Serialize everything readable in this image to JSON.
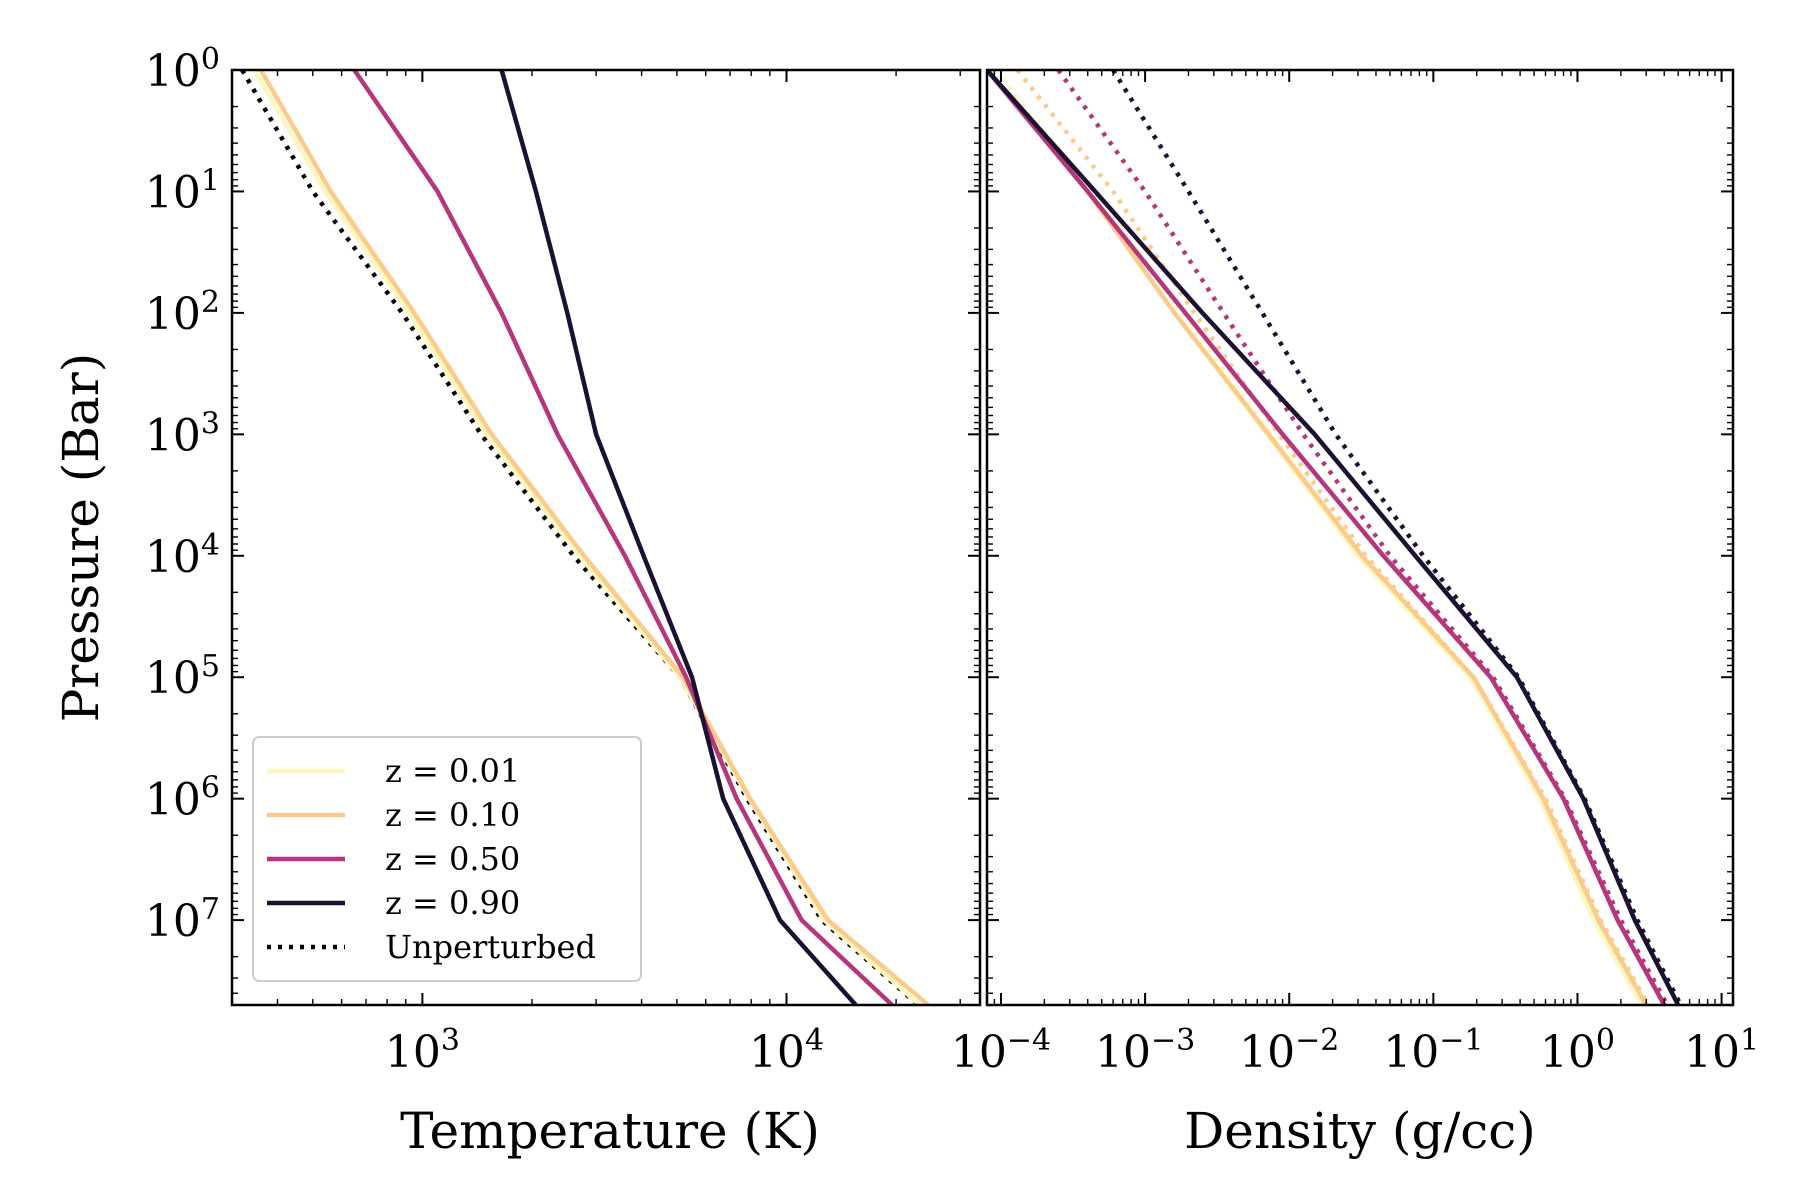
{
  "chart_data": [
    {
      "type": "line",
      "xscale": "log",
      "yscale": "log",
      "xlabel": "Temperature (K)",
      "ylabel": "Pressure (Bar)",
      "xlim": [
        300,
        34000
      ],
      "ylim": [
        1,
        50000000
      ],
      "y_inverted": true,
      "xticks": [
        {
          "base": "10",
          "exp": "3",
          "value": 1000
        },
        {
          "base": "10",
          "exp": "4",
          "value": 10000
        }
      ],
      "yticks": [
        {
          "base": "10",
          "exp": "0",
          "value": 1
        },
        {
          "base": "10",
          "exp": "1",
          "value": 10
        },
        {
          "base": "10",
          "exp": "2",
          "value": 100
        },
        {
          "base": "10",
          "exp": "3",
          "value": 1000
        },
        {
          "base": "10",
          "exp": "4",
          "value": 10000
        },
        {
          "base": "10",
          "exp": "5",
          "value": 100000
        },
        {
          "base": "10",
          "exp": "6",
          "value": 1000000
        },
        {
          "base": "10",
          "exp": "7",
          "value": 10000000
        }
      ],
      "legend_position": "lower-left",
      "series": [
        {
          "name": "Unperturbed",
          "color": "#000000",
          "style": "dotted",
          "points": [
            [
              320,
              1
            ],
            [
              500,
              10
            ],
            [
              880,
              100
            ],
            [
              1450,
              1000
            ],
            [
              2600,
              10000
            ],
            [
              5100,
              100000
            ],
            [
              7800,
              1000000
            ],
            [
              12500,
              10000000
            ],
            [
              23000,
              50000000
            ]
          ]
        },
        {
          "name": "z = 0.01",
          "color": "#fcf6bf",
          "style": "solid",
          "points": [
            [
              345,
              1
            ],
            [
              540,
              10
            ],
            [
              920,
              100
            ],
            [
              1500,
              1000
            ],
            [
              2700,
              10000
            ],
            [
              5100,
              100000
            ],
            [
              7900,
              1000000
            ],
            [
              12700,
              10000000
            ],
            [
              23200,
              50000000
            ]
          ]
        },
        {
          "name": "z = 0.10",
          "color": "#fbcb8c",
          "style": "solid",
          "points": [
            [
              360,
              1
            ],
            [
              560,
              10
            ],
            [
              950,
              100
            ],
            [
              1550,
              1000
            ],
            [
              2780,
              10000
            ],
            [
              5200,
              100000
            ],
            [
              7950,
              1000000
            ],
            [
              13000,
              10000000
            ],
            [
              24500,
              50000000
            ]
          ]
        },
        {
          "name": "z = 0.50",
          "color": "#b5367a",
          "style": "solid",
          "points": [
            [
              650,
              1
            ],
            [
              1100,
              10
            ],
            [
              1650,
              100
            ],
            [
              2350,
              1000
            ],
            [
              3600,
              10000
            ],
            [
              5300,
              100000
            ],
            [
              7300,
              1000000
            ],
            [
              11000,
              10000000
            ],
            [
              19500,
              50000000
            ]
          ]
        },
        {
          "name": "z = 0.90",
          "color": "#1c1033",
          "style": "solid",
          "points": [
            [
              1650,
              1
            ],
            [
              2050,
              10
            ],
            [
              2500,
              100
            ],
            [
              3000,
              1000
            ],
            [
              4050,
              10000
            ],
            [
              5500,
              100000
            ],
            [
              6700,
              1000000
            ],
            [
              9600,
              10000000
            ],
            [
              15500,
              50000000
            ]
          ]
        }
      ],
      "legend": [
        {
          "label": "z = 0.01",
          "color": "#fcf6bf",
          "style": "solid"
        },
        {
          "label": "z = 0.10",
          "color": "#fbcb8c",
          "style": "solid"
        },
        {
          "label": "z = 0.50",
          "color": "#b5367a",
          "style": "solid"
        },
        {
          "label": "z = 0.90",
          "color": "#1c1033",
          "style": "solid"
        },
        {
          "label": "Unperturbed",
          "color": "#000000",
          "style": "dotted"
        }
      ]
    },
    {
      "type": "line",
      "xscale": "log",
      "yscale": "log",
      "xlabel": "Density (g/cc)",
      "ylabel": "",
      "xlim": [
        8e-05,
        12
      ],
      "ylim": [
        1,
        50000000
      ],
      "y_inverted": true,
      "xticks": [
        {
          "base": "10",
          "exp": "−4",
          "value": 0.0001
        },
        {
          "base": "10",
          "exp": "−3",
          "value": 0.001
        },
        {
          "base": "10",
          "exp": "−2",
          "value": 0.01
        },
        {
          "base": "10",
          "exp": "−1",
          "value": 0.1
        },
        {
          "base": "10",
          "exp": "0",
          "value": 1
        },
        {
          "base": "10",
          "exp": "1",
          "value": 10
        }
      ],
      "series": [
        {
          "name": "z = 0.01",
          "color": "#fcf6bf",
          "style": "solid",
          "points": [
            [
              8e-05,
              1
            ],
            [
              0.0004,
              10
            ],
            [
              0.0016,
              100
            ],
            [
              0.007,
              1000
            ],
            [
              0.03,
              10000
            ],
            [
              0.18,
              100000
            ],
            [
              0.55,
              1000000
            ],
            [
              1.3,
              10000000
            ],
            [
              2.8,
              50000000
            ]
          ]
        },
        {
          "name": "z = 0.01 (unperturbed)",
          "color": "#fcf6bf",
          "style": "dotted",
          "points": [
            [
              9e-05,
              1
            ],
            [
              0.00045,
              10
            ],
            [
              0.0018,
              100
            ],
            [
              0.0075,
              1000
            ],
            [
              0.031,
              10000
            ],
            [
              0.18,
              100000
            ],
            [
              0.56,
              1000000
            ],
            [
              1.35,
              10000000
            ],
            [
              2.9,
              50000000
            ]
          ]
        },
        {
          "name": "z = 0.10",
          "color": "#fbcb8c",
          "style": "solid",
          "points": [
            [
              8e-05,
              1
            ],
            [
              0.0004,
              10
            ],
            [
              0.0016,
              100
            ],
            [
              0.0072,
              1000
            ],
            [
              0.032,
              10000
            ],
            [
              0.19,
              100000
            ],
            [
              0.58,
              1000000
            ],
            [
              1.4,
              10000000
            ],
            [
              3.0,
              50000000
            ]
          ]
        },
        {
          "name": "z = 0.10 (unperturbed)",
          "color": "#fbcb8c",
          "style": "dotted",
          "points": [
            [
              0.00013,
              1
            ],
            [
              0.0006,
              10
            ],
            [
              0.0022,
              100
            ],
            [
              0.0085,
              1000
            ],
            [
              0.034,
              10000
            ],
            [
              0.19,
              100000
            ],
            [
              0.6,
              1000000
            ],
            [
              1.45,
              10000000
            ],
            [
              3.1,
              50000000
            ]
          ]
        },
        {
          "name": "z = 0.50",
          "color": "#b5367a",
          "style": "solid",
          "points": [
            [
              8e-05,
              1
            ],
            [
              0.0004,
              10
            ],
            [
              0.0019,
              100
            ],
            [
              0.009,
              1000
            ],
            [
              0.045,
              10000
            ],
            [
              0.25,
              100000
            ],
            [
              0.8,
              1000000
            ],
            [
              1.9,
              10000000
            ],
            [
              4.0,
              50000000
            ]
          ]
        },
        {
          "name": "z = 0.50 (unperturbed)",
          "color": "#b5367a",
          "style": "dotted",
          "points": [
            [
              0.00025,
              1
            ],
            [
              0.001,
              10
            ],
            [
              0.0035,
              100
            ],
            [
              0.0125,
              1000
            ],
            [
              0.05,
              10000
            ],
            [
              0.26,
              100000
            ],
            [
              0.82,
              1000000
            ],
            [
              2.0,
              10000000
            ],
            [
              4.2,
              50000000
            ]
          ]
        },
        {
          "name": "z = 0.90",
          "color": "#1c1033",
          "style": "solid",
          "points": [
            [
              8e-05,
              1
            ],
            [
              0.00045,
              10
            ],
            [
              0.0025,
              100
            ],
            [
              0.015,
              1000
            ],
            [
              0.075,
              10000
            ],
            [
              0.38,
              100000
            ],
            [
              1.1,
              1000000
            ],
            [
              2.5,
              10000000
            ],
            [
              5.0,
              50000000
            ]
          ]
        },
        {
          "name": "z = 0.90 (unperturbed)",
          "color": "#1c1033",
          "style": "dotted",
          "points": [
            [
              0.0006,
              1
            ],
            [
              0.002,
              10
            ],
            [
              0.0065,
              100
            ],
            [
              0.021,
              1000
            ],
            [
              0.085,
              10000
            ],
            [
              0.39,
              100000
            ],
            [
              1.12,
              1000000
            ],
            [
              2.6,
              10000000
            ],
            [
              5.2,
              50000000
            ]
          ]
        }
      ]
    }
  ]
}
